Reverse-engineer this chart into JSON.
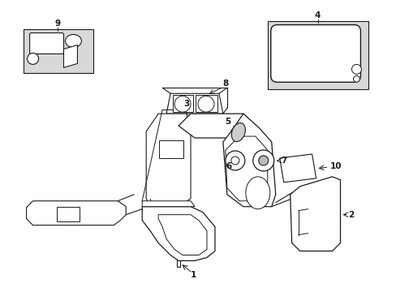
{
  "bg_color": "#ffffff",
  "line_color": "#1a1a1a",
  "fig_width": 4.89,
  "fig_height": 3.6,
  "dpi": 100,
  "gray_fill": "#d8d8d8",
  "white_fill": "#ffffff",
  "label_fs": 7.5
}
